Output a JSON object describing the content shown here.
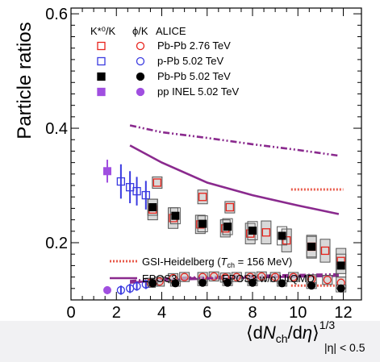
{
  "chart_data": {
    "type": "scatter",
    "ylabel": "Particle ratios",
    "xlabel": {
      "prefix": "⟨d",
      "N": "N",
      "ch": "ch",
      "mid": "/d",
      "eta": "η",
      "close": "⟩",
      "exp": "1/3",
      "sub": "|η| < 0.5"
    },
    "xlim": [
      0,
      12.8
    ],
    "ylim": [
      0.1,
      0.61
    ],
    "x_ticks": [
      0,
      2,
      4,
      6,
      8,
      10,
      12
    ],
    "y_ticks": [
      0.2,
      0.4,
      0.6
    ],
    "legend": {
      "col1_header": "K*⁰/K",
      "col2_header": "ϕ/K",
      "col3_header": "ALICE",
      "entries": [
        "Pb-Pb 2.76 TeV",
        "p-Pb 5.02 TeV",
        "Pb-Pb 5.02 TeV",
        "pp INEL 5.02 TeV"
      ]
    },
    "model_legend": {
      "gsi": {
        "prefix": "GSI-Heidelberg (",
        "T": "T",
        "sub": "ch",
        "suffix": " = 156 MeV)"
      },
      "epos3": "EPOS3",
      "epos3_wo": "EPOS3 w/o UrQMD"
    },
    "colors": {
      "pbpb276": "#e8231c",
      "ppb": "#3a3ae0",
      "pbpb502": "#000000",
      "pp": "#a04fe0",
      "epos": "#8a2a8e",
      "gsi": "#e85a4a",
      "sys_box": "#a7a7a7"
    },
    "series": [
      {
        "name": "Pb-Pb 2.76 TeV",
        "ratio": "K*0/K",
        "marker": "open-square",
        "x": [
          3.6,
          4.5,
          5.7,
          6.8,
          7.9,
          8.6,
          9.5,
          10.6,
          11.2,
          11.9
        ],
        "y": [
          0.258,
          0.243,
          0.232,
          0.225,
          0.216,
          0.218,
          0.204,
          0.193,
          0.186,
          0.168
        ],
        "err": [
          0.018,
          0.018,
          0.016,
          0.015,
          0.018,
          0.02,
          0.02,
          0.02,
          0.02,
          0.022
        ]
      },
      {
        "name": "Pb-Pb 2.76 TeV",
        "ratio": "K*0/K",
        "marker": "open-square",
        "x": [
          3.8,
          5.8,
          7.0
        ],
        "y": [
          0.305,
          0.28,
          0.262
        ],
        "err": [
          0.01,
          0.012,
          0.01
        ]
      },
      {
        "name": "p-Pb 5.02 TeV",
        "ratio": "K*0/K",
        "marker": "open-square",
        "x": [
          2.2,
          2.6,
          2.9,
          3.3
        ],
        "y": [
          0.307,
          0.297,
          0.29,
          0.283
        ],
        "err": [
          0.03,
          0.028,
          0.025,
          0.025
        ]
      },
      {
        "name": "Pb-Pb 5.02 TeV",
        "ratio": "K*0/K",
        "marker": "filled-square",
        "x": [
          3.6,
          4.6,
          5.8,
          6.9,
          8.0,
          9.3,
          10.6,
          11.9
        ],
        "y": [
          0.262,
          0.247,
          0.233,
          0.228,
          0.221,
          0.212,
          0.193,
          0.16
        ],
        "err": [
          0.014,
          0.014,
          0.014,
          0.014,
          0.016,
          0.016,
          0.018,
          0.02
        ]
      },
      {
        "name": "pp INEL 5.02 TeV",
        "ratio": "K*0/K",
        "marker": "filled-square",
        "x": [
          1.6
        ],
        "y": [
          0.325
        ],
        "err": [
          0.02
        ]
      },
      {
        "name": "Pb-Pb 2.76 TeV",
        "ratio": "phi/K",
        "marker": "open-circle",
        "x": [
          3.5,
          3.9,
          4.5,
          5.0,
          5.8,
          6.3,
          6.8,
          7.3,
          7.9,
          8.4,
          9.0,
          9.8,
          10.6,
          11.3,
          11.9
        ],
        "y": [
          0.13,
          0.132,
          0.138,
          0.14,
          0.14,
          0.141,
          0.139,
          0.14,
          0.14,
          0.141,
          0.14,
          0.14,
          0.136,
          0.135,
          0.13
        ],
        "err": [
          0.008,
          0.008,
          0.008,
          0.008,
          0.008,
          0.008,
          0.008,
          0.008,
          0.008,
          0.008,
          0.008,
          0.008,
          0.008,
          0.008,
          0.01
        ]
      },
      {
        "name": "p-Pb 5.02 TeV",
        "ratio": "phi/K",
        "marker": "open-circle",
        "x": [
          2.2,
          2.6,
          2.9,
          3.3
        ],
        "y": [
          0.117,
          0.12,
          0.124,
          0.127
        ],
        "err": [
          0.008,
          0.008,
          0.008,
          0.008
        ]
      },
      {
        "name": "Pb-Pb 5.02 TeV",
        "ratio": "phi/K",
        "marker": "filled-circle",
        "x": [
          3.6,
          4.6,
          5.8,
          6.9,
          8.0,
          9.3,
          10.6,
          11.9
        ],
        "y": [
          0.129,
          0.129,
          0.13,
          0.13,
          0.13,
          0.129,
          0.125,
          0.12
        ],
        "err": [
          0.005,
          0.005,
          0.005,
          0.005,
          0.005,
          0.005,
          0.005,
          0.006
        ]
      },
      {
        "name": "pp INEL 5.02 TeV",
        "ratio": "phi/K",
        "marker": "filled-circle",
        "x": [
          1.6
        ],
        "y": [
          0.117
        ],
        "err": [
          0.007
        ]
      }
    ],
    "models": {
      "epos3_kstar": {
        "x": [
          2.6,
          4.0,
          6.0,
          8.0,
          10.0,
          11.8
        ],
        "y": [
          0.37,
          0.34,
          0.305,
          0.283,
          0.265,
          0.25
        ]
      },
      "epos3_phi": {
        "x": [
          2.6,
          3.5,
          5.0,
          7.0,
          9.0,
          11.8
        ],
        "y": [
          0.13,
          0.133,
          0.136,
          0.138,
          0.14,
          0.142
        ]
      },
      "epos3_wo_kstar": {
        "x": [
          2.6,
          4.0,
          6.0,
          8.0,
          10.0,
          11.8
        ],
        "y": [
          0.405,
          0.393,
          0.383,
          0.372,
          0.362,
          0.352
        ]
      },
      "epos3_wo_phi": {
        "x": [
          2.6,
          3.5,
          5.0,
          7.0,
          9.0,
          11.8
        ],
        "y": [
          0.133,
          0.136,
          0.139,
          0.141,
          0.143,
          0.145
        ]
      },
      "gsi_kstar": {
        "x": [
          9.7,
          12.0
        ],
        "y": [
          0.293,
          0.293
        ]
      },
      "gsi_phi": {
        "x": [
          9.7,
          12.0
        ],
        "y": [
          0.125,
          0.125
        ]
      }
    }
  }
}
